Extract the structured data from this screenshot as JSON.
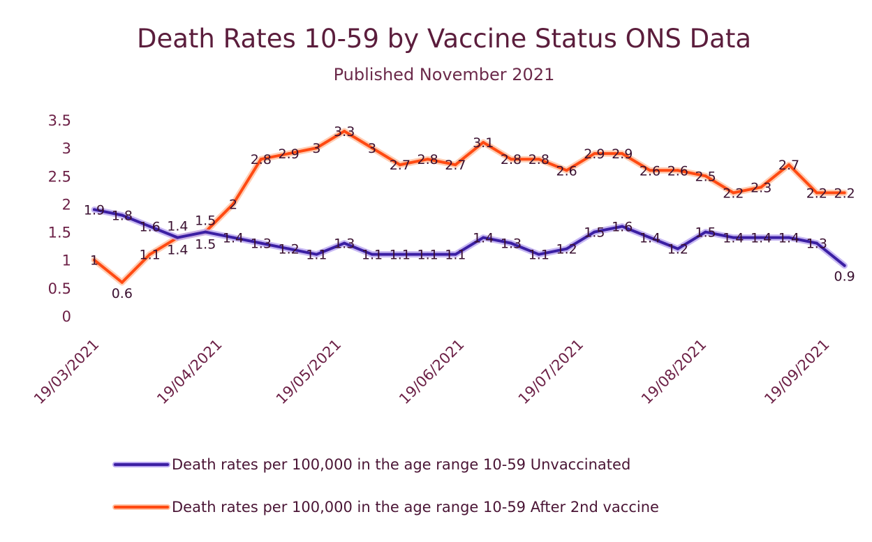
{
  "chart_data": {
    "type": "line",
    "title": "Death Rates 10-59  by Vaccine Status ONS Data",
    "subtitle": "Published November 2021",
    "xlabel": "",
    "ylabel": "",
    "ylim": [
      0,
      3.5
    ],
    "yticks": [
      "0",
      "0.5",
      "1",
      "1.5",
      "2",
      "2.5",
      "3",
      "3.5"
    ],
    "ytick_values": [
      0,
      0.5,
      1,
      1.5,
      2,
      2.5,
      3,
      3.5
    ],
    "xticks": [
      "19/03/2021",
      "19/04/2021",
      "19/05/2021",
      "19/06/2021",
      "19/07/2021",
      "19/08/2021",
      "19/09/2021"
    ],
    "xtick_day_offsets": [
      0,
      31,
      61,
      92,
      122,
      153,
      184
    ],
    "x_interval_days": 7,
    "grid": false,
    "legend_position": "bottom",
    "series": [
      {
        "name": "Death rates per 100,000 in the age range 10-59 Unvaccinated",
        "color": "#3b1fa3",
        "glow": "#b9a6f0",
        "values": [
          1.9,
          1.8,
          1.6,
          1.4,
          1.5,
          1.4,
          1.3,
          1.2,
          1.1,
          1.3,
          1.1,
          1.1,
          1.1,
          1.1,
          1.4,
          1.3,
          1.1,
          1.2,
          1.5,
          1.6,
          1.4,
          1.2,
          1.5,
          1.4,
          1.4,
          1.4,
          1.3,
          0.9
        ]
      },
      {
        "name": "Death rates per 100,000 in the age range 10-59 After 2nd  vaccine",
        "color": "#ff4a12",
        "glow": "#ffc0a0",
        "values": [
          1,
          0.6,
          1.1,
          1.4,
          1.5,
          2,
          2.8,
          2.9,
          3,
          3.3,
          3,
          2.7,
          2.8,
          2.7,
          3.1,
          2.8,
          2.8,
          2.6,
          2.9,
          2.9,
          2.6,
          2.6,
          2.5,
          2.2,
          2.3,
          2.7,
          2.2,
          2.2
        ]
      }
    ]
  }
}
